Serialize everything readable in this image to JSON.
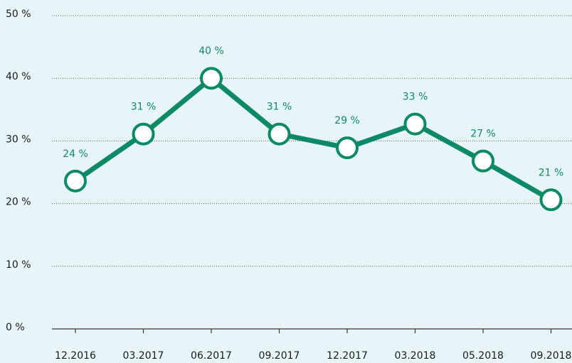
{
  "chart_data": {
    "type": "line",
    "categories": [
      "12.2016",
      "03.2017",
      "06.2017",
      "09.2017",
      "12.2017",
      "03.2018",
      "05.2018",
      "09.2018"
    ],
    "series": [
      {
        "name": null,
        "color": "#0b8a65",
        "values": [
          23.6,
          31.1,
          40.0,
          31.1,
          28.9,
          32.7,
          26.8,
          20.6
        ],
        "value_labels": [
          "24 %",
          "31 %",
          "40 %",
          "31 %",
          "29 %",
          "33 %",
          "27 %",
          "21 %"
        ]
      }
    ],
    "ylim": [
      0,
      50
    ],
    "yticks": [
      {
        "value": 0,
        "label": "0 %"
      },
      {
        "value": 10,
        "label": "10 %"
      },
      {
        "value": 20,
        "label": "20 %"
      },
      {
        "value": 30,
        "label": "30 %"
      },
      {
        "value": 40,
        "label": "40 %"
      },
      {
        "value": 50,
        "label": "50 %"
      }
    ],
    "grid": true
  }
}
